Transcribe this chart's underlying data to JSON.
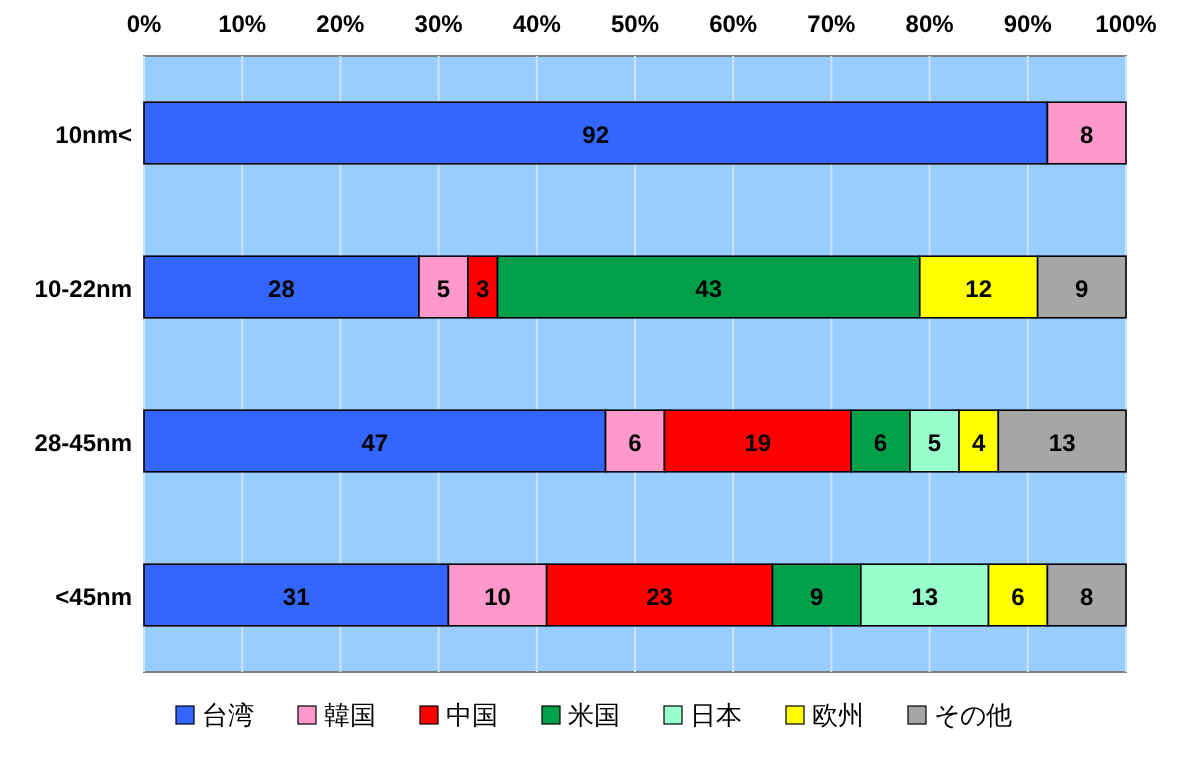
{
  "chart_data": {
    "type": "bar",
    "orientation": "horizontal",
    "stacked": true,
    "categories": [
      "10nm<",
      "10-22nm",
      "28-45nm",
      "<45nm"
    ],
    "series": [
      {
        "name": "台湾",
        "color": "#3366ff",
        "values": [
          92,
          28,
          47,
          31
        ]
      },
      {
        "name": "韓国",
        "color": "#ff99cc",
        "values": [
          8,
          5,
          6,
          10
        ]
      },
      {
        "name": "中国",
        "color": "#ff0000",
        "values": [
          null,
          3,
          19,
          23
        ]
      },
      {
        "name": "米国",
        "color": "#00a04a",
        "values": [
          null,
          43,
          6,
          9
        ]
      },
      {
        "name": "日本",
        "color": "#99ffcc",
        "values": [
          null,
          null,
          5,
          13
        ]
      },
      {
        "name": "欧州",
        "color": "#ffff00",
        "values": [
          null,
          12,
          4,
          6
        ]
      },
      {
        "name": "その他",
        "color": "#a6a6a6",
        "values": [
          null,
          9,
          13,
          8
        ]
      }
    ],
    "xlim": [
      0,
      100
    ],
    "xticks": [
      {
        "value": 0,
        "label": "0%"
      },
      {
        "value": 10,
        "label": "10%"
      },
      {
        "value": 20,
        "label": "20%"
      },
      {
        "value": 30,
        "label": "30%"
      },
      {
        "value": 40,
        "label": "40%"
      },
      {
        "value": 50,
        "label": "50%"
      },
      {
        "value": 60,
        "label": "60%"
      },
      {
        "value": 70,
        "label": "70%"
      },
      {
        "value": 80,
        "label": "80%"
      },
      {
        "value": 90,
        "label": "90%"
      },
      {
        "value": 100,
        "label": "100%"
      }
    ],
    "grid": "x",
    "legend": "bottom",
    "data_labels": true
  }
}
